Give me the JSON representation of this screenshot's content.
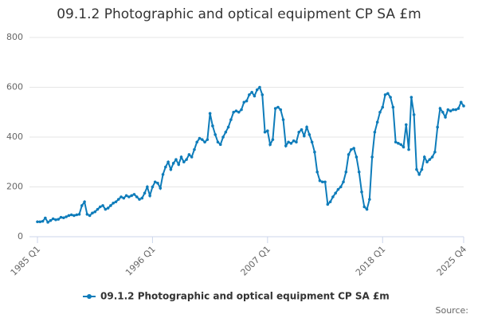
{
  "chart_data": {
    "type": "line",
    "title": "09.1.2 Photographic and optical equipment CP SA £m",
    "categories": [
      "1985 Q1",
      null,
      null,
      null,
      null,
      null,
      null,
      null,
      null,
      null,
      null,
      null,
      null,
      null,
      null,
      null,
      null,
      null,
      null,
      null,
      null,
      null,
      null,
      null,
      null,
      null,
      null,
      null,
      null,
      null,
      null,
      null,
      null,
      null,
      null,
      null,
      null,
      null,
      null,
      null,
      null,
      null,
      null,
      null,
      "1996 Q1",
      null,
      null,
      null,
      null,
      null,
      null,
      null,
      null,
      null,
      null,
      null,
      null,
      null,
      null,
      null,
      null,
      null,
      null,
      null,
      null,
      null,
      null,
      null,
      null,
      null,
      null,
      null,
      null,
      null,
      null,
      null,
      null,
      null,
      null,
      null,
      null,
      null,
      null,
      null,
      null,
      null,
      null,
      null,
      "2007 Q1",
      null,
      null,
      null,
      null,
      null,
      null,
      null,
      null,
      null,
      null,
      null,
      null,
      null,
      null,
      null,
      null,
      null,
      null,
      null,
      null,
      null,
      null,
      null,
      null,
      null,
      null,
      null,
      null,
      null,
      null,
      null,
      null,
      null,
      null,
      null,
      null,
      null,
      null,
      null,
      null,
      null,
      null,
      null,
      "2018 Q1",
      null,
      null,
      null,
      null,
      null,
      null,
      null,
      null,
      null,
      null,
      null,
      null,
      null,
      null,
      null,
      null,
      null,
      null,
      null,
      null,
      null,
      null,
      null,
      null,
      null,
      null,
      null,
      null,
      null,
      null,
      "2025 Q4"
    ],
    "series": [
      {
        "name": "09.1.2 Photographic and optical equipment CP SA £m",
        "color": "#0e7cba",
        "values": [
          60,
          60,
          62,
          75,
          58,
          65,
          72,
          68,
          70,
          78,
          76,
          80,
          85,
          88,
          85,
          88,
          90,
          125,
          140,
          90,
          85,
          95,
          100,
          110,
          120,
          125,
          110,
          115,
          125,
          135,
          140,
          150,
          160,
          155,
          165,
          160,
          165,
          170,
          160,
          150,
          155,
          175,
          200,
          165,
          200,
          220,
          215,
          195,
          250,
          280,
          300,
          270,
          295,
          310,
          290,
          320,
          300,
          310,
          330,
          320,
          350,
          380,
          395,
          390,
          380,
          390,
          495,
          445,
          410,
          380,
          370,
          400,
          420,
          440,
          470,
          500,
          505,
          500,
          510,
          540,
          545,
          570,
          580,
          565,
          590,
          600,
          570,
          420,
          425,
          370,
          390,
          515,
          520,
          510,
          470,
          365,
          380,
          375,
          385,
          380,
          420,
          430,
          405,
          440,
          410,
          380,
          340,
          260,
          225,
          220,
          220,
          130,
          140,
          160,
          175,
          190,
          200,
          220,
          260,
          330,
          350,
          355,
          320,
          260,
          180,
          120,
          110,
          150,
          320,
          420,
          460,
          500,
          520,
          570,
          575,
          560,
          520,
          380,
          375,
          370,
          360,
          450,
          350,
          560,
          490,
          270,
          250,
          270,
          320,
          300,
          310,
          320,
          340,
          440,
          515,
          500,
          480,
          510,
          505,
          510,
          510,
          515,
          540,
          525
        ]
      }
    ],
    "ylim": [
      0,
      800
    ],
    "yticks": [
      0,
      200,
      400,
      600,
      800
    ],
    "grid": true,
    "legend": "bottom",
    "source": "Source:"
  }
}
